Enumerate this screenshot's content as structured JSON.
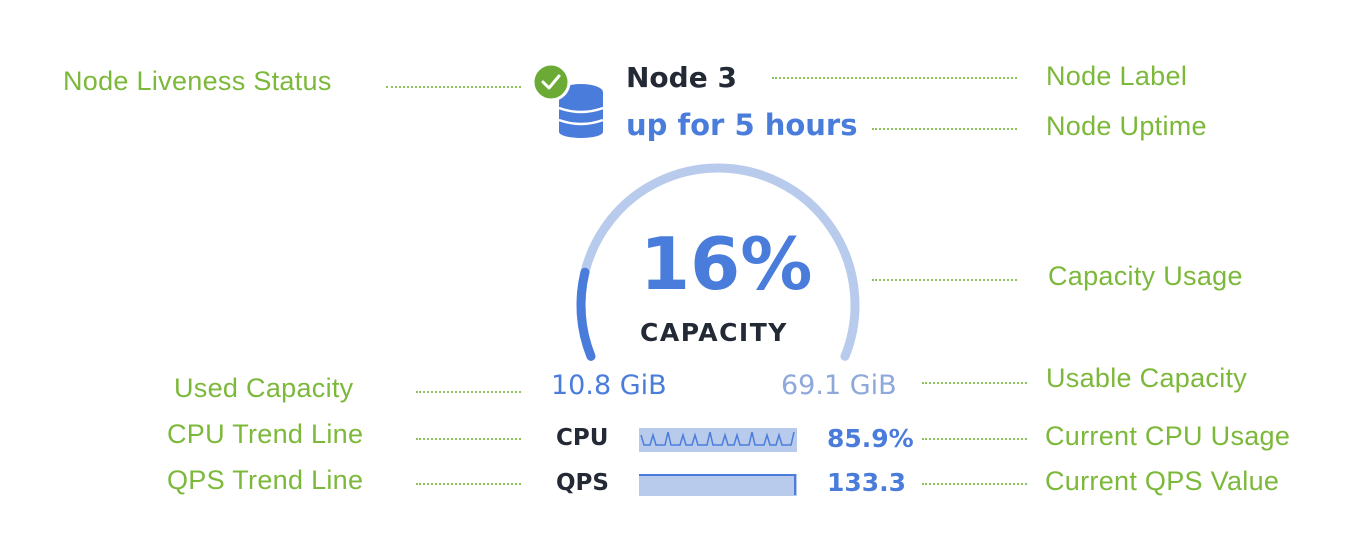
{
  "node": {
    "label": "Node 3",
    "uptime": "up for 5 hours",
    "liveness": "live",
    "capacity_percent_label": "16%",
    "capacity_percent": 16,
    "capacity_caption": "CAPACITY",
    "used_capacity": "10.8 GiB",
    "usable_capacity": "69.1 GiB",
    "cpu_label": "CPU",
    "cpu_value": "85.9%",
    "qps_label": "QPS",
    "qps_value": "133.3"
  },
  "annotations": {
    "liveness": "Node Liveness Status",
    "label": "Node Label",
    "uptime": "Node Uptime",
    "capacity_usage": "Capacity Usage",
    "used_capacity": "Used Capacity",
    "usable_capacity": "Usable Capacity",
    "cpu_trend": "CPU Trend Line",
    "cpu_current": "Current CPU Usage",
    "qps_trend": "QPS Trend Line",
    "qps_current": "Current QPS Value"
  },
  "icons": {
    "status": "check-circle-icon",
    "node": "database-icon"
  },
  "colors": {
    "annotation": "#7cb83a",
    "accent": "#4a7ddb",
    "track": "#b8cbec",
    "status_ok": "#6aaa35",
    "text": "#242a35"
  }
}
